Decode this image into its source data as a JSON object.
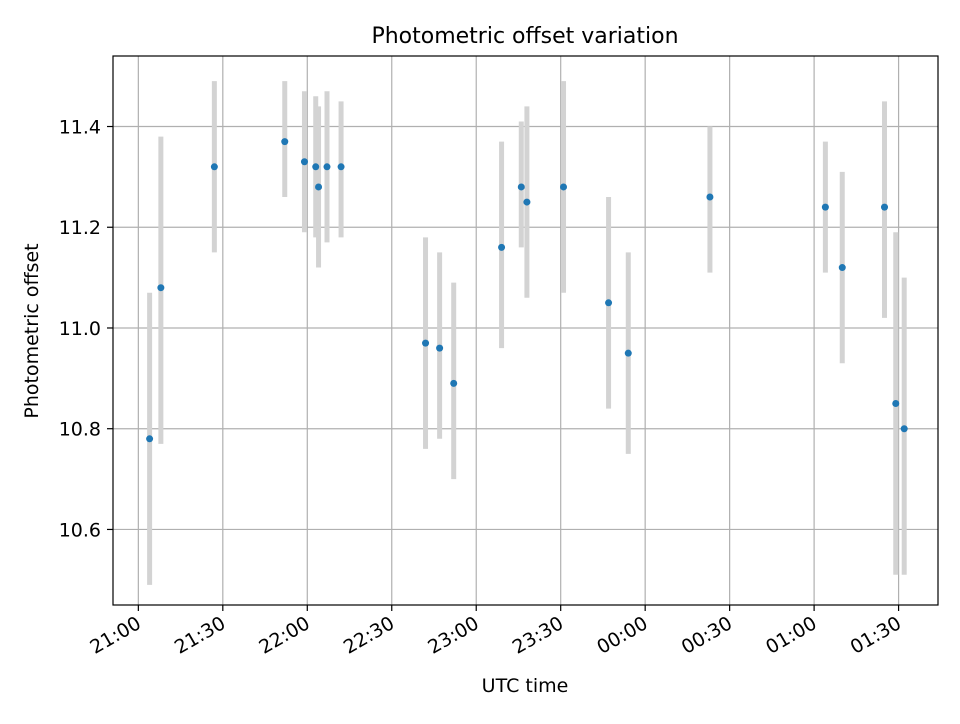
{
  "chart_data": {
    "type": "scatter",
    "title": "Photometric offset variation",
    "xlabel": "UTC time",
    "ylabel": "Photometric offset",
    "x_tick_labels": [
      "21:00",
      "21:30",
      "22:00",
      "22:30",
      "23:00",
      "23:30",
      "00:00",
      "00:30",
      "01:00",
      "01:30"
    ],
    "x_ticks": [
      "21:00",
      "21:30",
      "22:00",
      "22:30",
      "23:00",
      "23:30",
      "00:00",
      "00:30",
      "01:00",
      "01:30"
    ],
    "xlim": [
      "20:51",
      "01:44"
    ],
    "y_ticks": [
      10.6,
      10.8,
      11.0,
      11.2,
      11.4
    ],
    "y_tick_labels": [
      "10.6",
      "10.8",
      "11.0",
      "11.2",
      "11.4"
    ],
    "ylim": [
      10.45,
      11.54
    ],
    "grid": true,
    "point_color": "#1f77b4",
    "errorbar_color": "#d3d3d3",
    "points": [
      {
        "x": "21:04",
        "y": 10.78,
        "low": 10.49,
        "high": 11.07
      },
      {
        "x": "21:08",
        "y": 11.08,
        "low": 10.77,
        "high": 11.38
      },
      {
        "x": "21:27",
        "y": 11.32,
        "low": 11.15,
        "high": 11.49
      },
      {
        "x": "21:52",
        "y": 11.37,
        "low": 11.26,
        "high": 11.49
      },
      {
        "x": "21:59",
        "y": 11.33,
        "low": 11.19,
        "high": 11.47
      },
      {
        "x": "22:03",
        "y": 11.32,
        "low": 11.18,
        "high": 11.46
      },
      {
        "x": "22:04",
        "y": 11.28,
        "low": 11.12,
        "high": 11.44
      },
      {
        "x": "22:07",
        "y": 11.32,
        "low": 11.17,
        "high": 11.47
      },
      {
        "x": "22:12",
        "y": 11.32,
        "low": 11.18,
        "high": 11.45
      },
      {
        "x": "22:42",
        "y": 10.97,
        "low": 10.76,
        "high": 11.18
      },
      {
        "x": "22:47",
        "y": 10.96,
        "low": 10.78,
        "high": 11.15
      },
      {
        "x": "22:52",
        "y": 10.89,
        "low": 10.7,
        "high": 11.09
      },
      {
        "x": "23:09",
        "y": 11.16,
        "low": 10.96,
        "high": 11.37
      },
      {
        "x": "23:16",
        "y": 11.28,
        "low": 11.16,
        "high": 11.41
      },
      {
        "x": "23:18",
        "y": 11.25,
        "low": 11.06,
        "high": 11.44
      },
      {
        "x": "23:31",
        "y": 11.28,
        "low": 11.07,
        "high": 11.49
      },
      {
        "x": "23:47",
        "y": 11.05,
        "low": 10.84,
        "high": 11.26
      },
      {
        "x": "23:54",
        "y": 10.95,
        "low": 10.75,
        "high": 11.15
      },
      {
        "x": "00:23",
        "y": 11.26,
        "low": 11.11,
        "high": 11.4
      },
      {
        "x": "01:04",
        "y": 11.24,
        "low": 11.11,
        "high": 11.37
      },
      {
        "x": "01:10",
        "y": 11.12,
        "low": 10.93,
        "high": 11.31
      },
      {
        "x": "01:25",
        "y": 11.24,
        "low": 11.02,
        "high": 11.45
      },
      {
        "x": "01:29",
        "y": 10.85,
        "low": 10.51,
        "high": 11.19
      },
      {
        "x": "01:32",
        "y": 10.8,
        "low": 10.51,
        "high": 11.1
      }
    ]
  }
}
